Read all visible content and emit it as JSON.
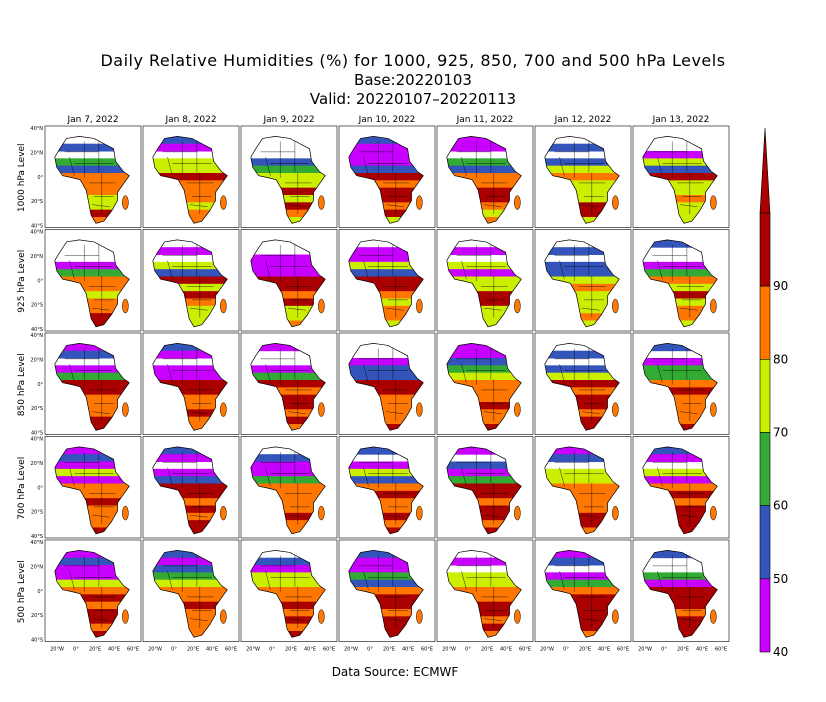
{
  "title": {
    "line1": "Daily Relative Humidities (%) for 1000, 925, 850, 700 and 500 hPa Levels",
    "line2": "Base:20220103",
    "line3": "Valid: 20220107–20220113"
  },
  "dates": [
    "Jan 7, 2022",
    "Jan 8, 2022",
    "Jan 9, 2022",
    "Jan 10, 2022",
    "Jan 11, 2022",
    "Jan 12, 2022",
    "Jan 13, 2022"
  ],
  "levels": [
    "1000 hPa Level",
    "925 hPa Level",
    "850 hPa Level",
    "700 hPa Level",
    "500 hPa Level"
  ],
  "lat_ticks": [
    "40°N",
    "20°N",
    "0°",
    "20°S",
    "40°S"
  ],
  "lon_ticks": [
    "20°W",
    "0°",
    "20°E",
    "40°E",
    "60°E"
  ],
  "legend": {
    "ticks": [
      "40",
      "50",
      "60",
      "70",
      "80",
      "90"
    ],
    "colors": [
      "#c800ff",
      "#3355bb",
      "#33aa33",
      "#ccee00",
      "#ff7700",
      "#aa0000"
    ]
  },
  "source": "Data Source: ECMWF"
}
